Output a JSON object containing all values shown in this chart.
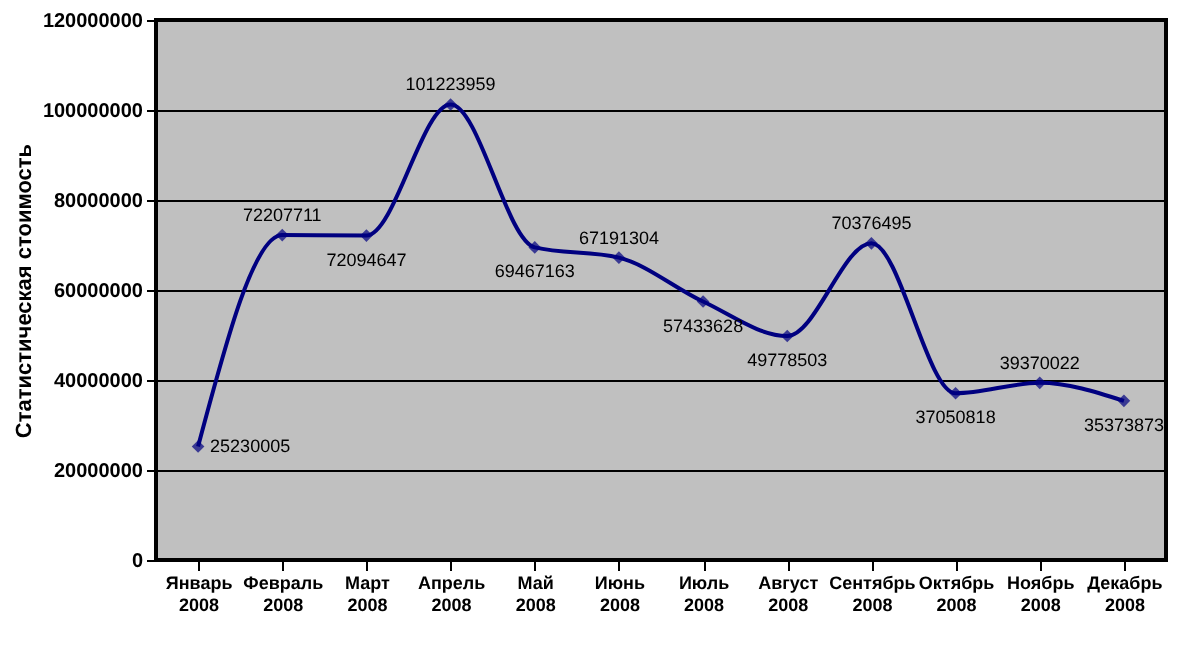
{
  "chart_data": {
    "type": "line",
    "ylabel": "Статистическая стоимость",
    "categories": [
      "Январь 2008",
      "Февраль 2008",
      "Март 2008",
      "Апрель 2008",
      "Май 2008",
      "Июнь 2008",
      "Июль 2008",
      "Август 2008",
      "Сентябрь 2008",
      "Октябрь 2008",
      "Ноябрь 2008",
      "Декабрь 2008"
    ],
    "series": [
      {
        "color": "#000080",
        "values": [
          25230005,
          72207711,
          72094647,
          101223959,
          69467163,
          67191304,
          57433628,
          49778503,
          70376495,
          37050818,
          39370022,
          35373873
        ]
      }
    ],
    "ylim": [
      0,
      120000000
    ],
    "yticks": [
      0,
      20000000,
      40000000,
      60000000,
      80000000,
      100000000,
      120000000
    ],
    "grid": "y",
    "marker": "diamond",
    "line_style": "solid",
    "data_labels": true,
    "legend": false
  }
}
